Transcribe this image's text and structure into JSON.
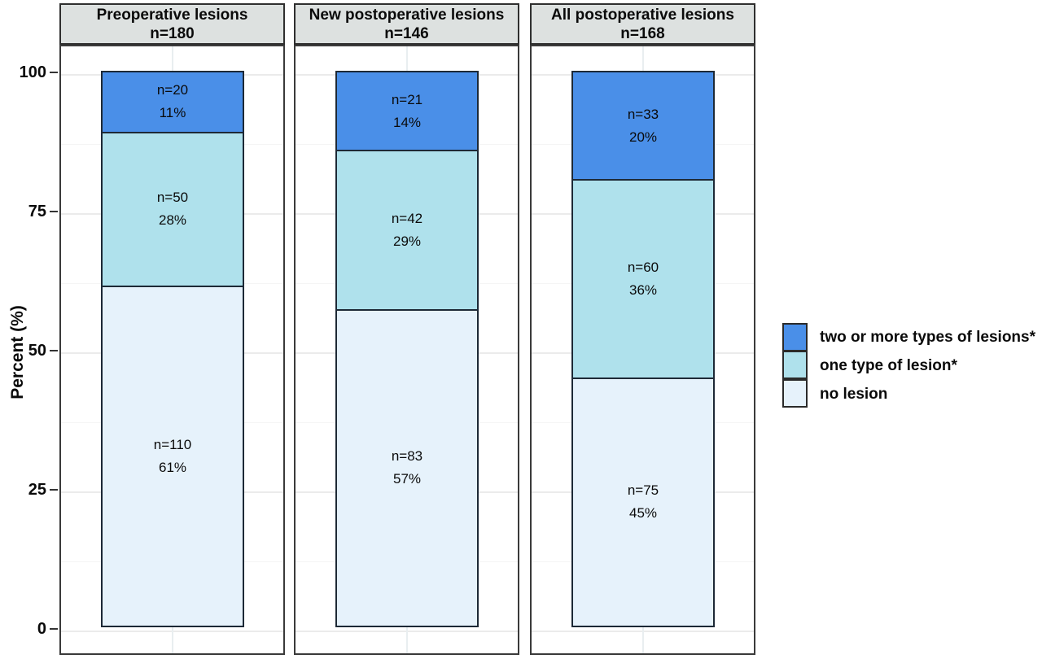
{
  "chart_data": {
    "type": "bar",
    "stacked": true,
    "orientation": "vertical",
    "ylabel": "Percent (%)",
    "ylim": [
      0,
      100
    ],
    "yticks": [
      "0",
      "25",
      "50",
      "75",
      "100"
    ],
    "ytick_values": [
      0,
      25,
      50,
      75,
      100
    ],
    "ytick_minor_values": [
      12.5,
      37.5,
      62.5,
      87.5
    ],
    "grid": "horizontal major and minor gridlines plus vertical centerline, very light gray, white panel background",
    "legend_position": "right",
    "series": [
      {
        "name": "two or more types of lesions*",
        "color": "#4a8fe8"
      },
      {
        "name": "one type of lesion*",
        "color": "#afe1ec"
      },
      {
        "name": "no lesion",
        "color": "#e6f2fb"
      }
    ],
    "panels": [
      {
        "title": "Preoperative lesions",
        "subtitle": "n=180",
        "total": 180,
        "segments": [
          {
            "series": "two or more types of lesions*",
            "n": 20,
            "n_label": "n=20",
            "pct_label": "11%"
          },
          {
            "series": "one type of lesion*",
            "n": 50,
            "n_label": "n=50",
            "pct_label": "28%"
          },
          {
            "series": "no lesion",
            "n": 110,
            "n_label": "n=110",
            "pct_label": "61%"
          }
        ]
      },
      {
        "title": "New postoperative lesions",
        "subtitle": "n=146",
        "total": 146,
        "segments": [
          {
            "series": "two or more types of lesions*",
            "n": 21,
            "n_label": "n=21",
            "pct_label": "14%"
          },
          {
            "series": "one type of lesion*",
            "n": 42,
            "n_label": "n=42",
            "pct_label": "29%"
          },
          {
            "series": "no lesion",
            "n": 83,
            "n_label": "n=83",
            "pct_label": "57%"
          }
        ]
      },
      {
        "title": "All postoperative lesions",
        "subtitle": "n=168",
        "total": 168,
        "segments": [
          {
            "series": "two or more types of lesions*",
            "n": 33,
            "n_label": "n=33",
            "pct_label": "20%"
          },
          {
            "series": "one type of lesion*",
            "n": 60,
            "n_label": "n=60",
            "pct_label": "36%"
          },
          {
            "series": "no lesion",
            "n": 75,
            "n_label": "n=75",
            "pct_label": "45%"
          }
        ]
      }
    ],
    "colors": {
      "panel_header_bg": "#dde1e0",
      "panel_border": "#3a3a3a",
      "segment_border": "#1d2936",
      "grid_major": "#ebebeb",
      "grid_minor": "#f5f5f5",
      "text": "#0a0a0a"
    }
  },
  "legend": {
    "items": [
      {
        "label": "two or more types of lesions*"
      },
      {
        "label": "one type of lesion*"
      },
      {
        "label": "no lesion"
      }
    ]
  }
}
